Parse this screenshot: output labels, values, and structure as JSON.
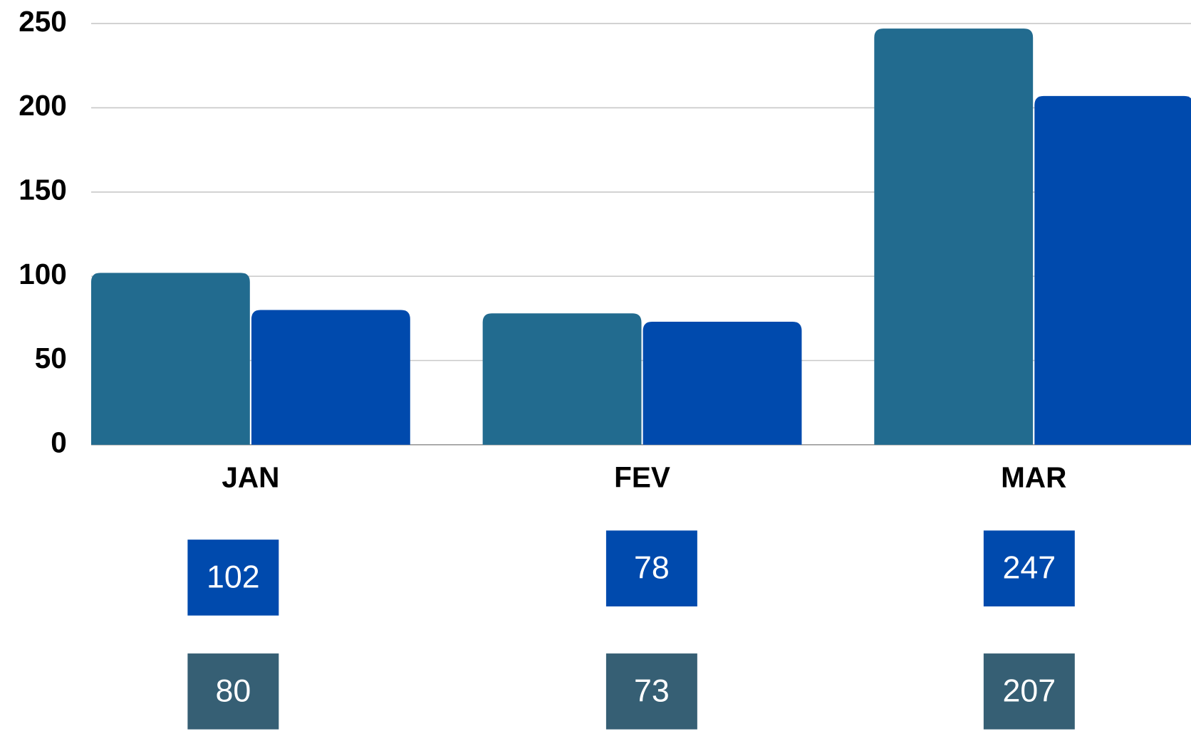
{
  "chart_data": {
    "type": "bar",
    "categories": [
      "JAN",
      "FEV",
      "MAR"
    ],
    "series": [
      {
        "color": "#226b8f",
        "label_color": "#004aad",
        "values": [
          102,
          78,
          247
        ]
      },
      {
        "color": "#004aad",
        "label_color": "#365f74",
        "values": [
          80,
          73,
          207
        ]
      }
    ],
    "ylim": [
      0,
      250
    ],
    "yticks": [
      0,
      50,
      100,
      150,
      200,
      250
    ],
    "grid": true
  }
}
